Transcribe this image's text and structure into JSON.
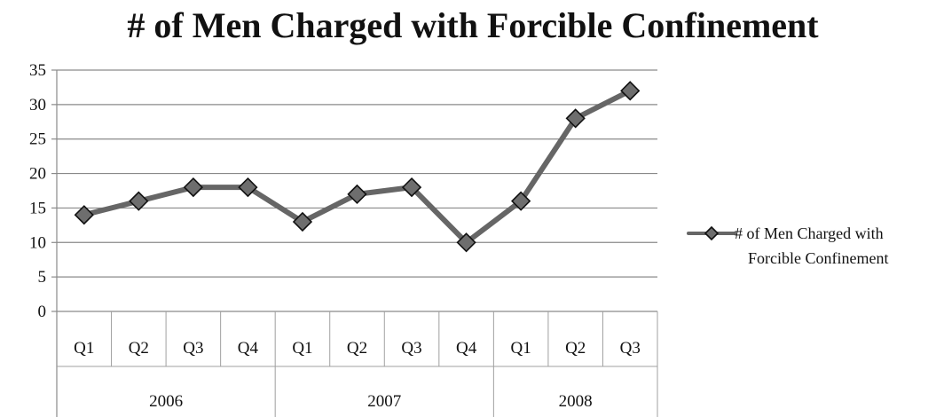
{
  "chart_data": {
    "type": "line",
    "title": "# of Men Charged with Forcible Confinement",
    "xlabel": "",
    "ylabel": "",
    "ylim": [
      0,
      35
    ],
    "yticks": [
      0,
      5,
      10,
      15,
      20,
      25,
      30,
      35
    ],
    "grid": true,
    "legend_position": "right",
    "categories": [
      "Q1",
      "Q2",
      "Q3",
      "Q4",
      "Q1",
      "Q2",
      "Q3",
      "Q4",
      "Q1",
      "Q2",
      "Q3"
    ],
    "groups": [
      {
        "label": "2006",
        "count": 4
      },
      {
        "label": "2007",
        "count": 4
      },
      {
        "label": "2008",
        "count": 3
      }
    ],
    "series": [
      {
        "name": "# of Men Charged with Forcible Confinement",
        "values": [
          14,
          16,
          18,
          18,
          13,
          17,
          18,
          10,
          16,
          28,
          32
        ],
        "color": "#666666",
        "marker": "diamond"
      }
    ],
    "legend": {
      "lines": [
        "# of Men Charged with",
        "Forcible Confinement"
      ]
    }
  }
}
